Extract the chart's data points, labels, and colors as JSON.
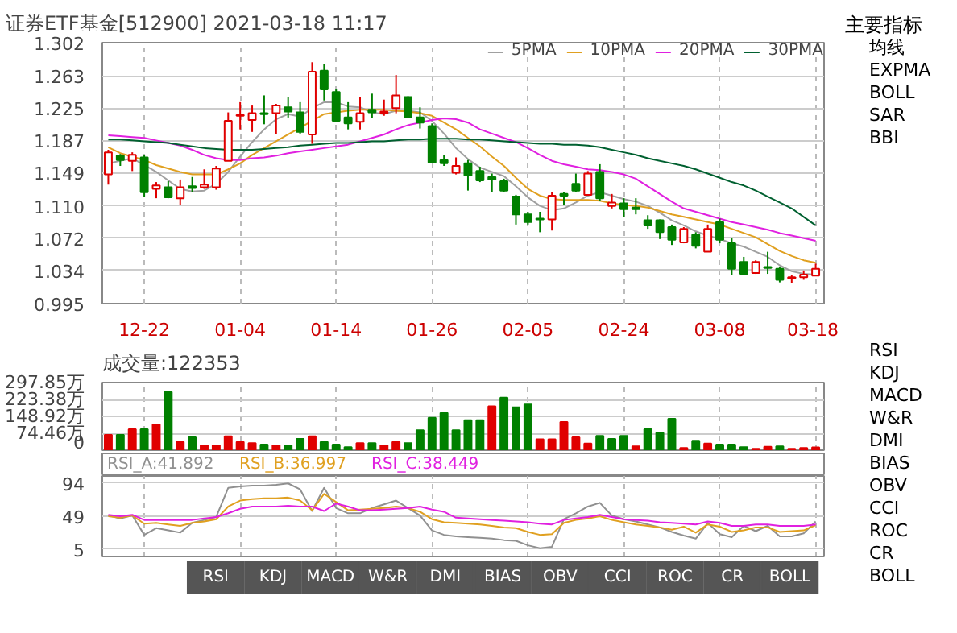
{
  "chart_data": [
    {
      "type": "candlestick",
      "title": "证券ETF基金[512900] 2021-03-18 11:17",
      "categories": [
        null,
        null,
        null,
        "12-22",
        null,
        null,
        null,
        null,
        null,
        null,
        null,
        "01-04",
        null,
        null,
        null,
        null,
        null,
        null,
        null,
        "01-14",
        null,
        null,
        null,
        null,
        null,
        null,
        null,
        "01-26",
        null,
        null,
        null,
        null,
        null,
        null,
        null,
        "02-05",
        null,
        null,
        null,
        null,
        null,
        null,
        null,
        "02-24",
        null,
        null,
        null,
        null,
        null,
        null,
        null,
        "03-08",
        null,
        null,
        null,
        null,
        null,
        null,
        null,
        "03-18"
      ],
      "ohlc": [
        [
          1.147,
          1.176,
          1.135,
          1.173
        ],
        [
          1.169,
          1.171,
          1.157,
          1.164
        ],
        [
          1.163,
          1.173,
          1.151,
          1.17
        ],
        [
          1.167,
          1.17,
          1.121,
          1.126
        ],
        [
          1.13,
          1.138,
          1.119,
          1.134
        ],
        [
          1.132,
          1.139,
          1.119,
          1.12
        ],
        [
          1.119,
          1.141,
          1.111,
          1.132
        ],
        [
          1.133,
          1.144,
          1.126,
          1.131
        ],
        [
          1.132,
          1.153,
          1.13,
          1.135
        ],
        [
          1.132,
          1.157,
          1.129,
          1.154
        ],
        [
          1.163,
          1.22,
          1.163,
          1.21
        ],
        [
          1.216,
          1.232,
          1.2,
          1.217
        ],
        [
          1.211,
          1.228,
          1.197,
          1.219
        ],
        [
          1.219,
          1.24,
          1.206,
          1.218
        ],
        [
          1.219,
          1.23,
          1.194,
          1.228
        ],
        [
          1.226,
          1.238,
          1.214,
          1.221
        ],
        [
          1.22,
          1.232,
          1.195,
          1.197
        ],
        [
          1.194,
          1.279,
          1.183,
          1.268
        ],
        [
          1.269,
          1.277,
          1.234,
          1.247
        ],
        [
          1.244,
          1.247,
          1.209,
          1.21
        ],
        [
          1.214,
          1.232,
          1.2,
          1.207
        ],
        [
          1.209,
          1.238,
          1.2,
          1.219
        ],
        [
          1.223,
          1.242,
          1.213,
          1.22
        ],
        [
          1.219,
          1.235,
          1.216,
          1.221
        ],
        [
          1.225,
          1.264,
          1.219,
          1.24
        ],
        [
          1.238,
          1.239,
          1.213,
          1.214
        ],
        [
          1.214,
          1.226,
          1.201,
          1.208
        ],
        [
          1.204,
          1.207,
          1.161,
          1.161
        ],
        [
          1.164,
          1.17,
          1.157,
          1.16
        ],
        [
          1.149,
          1.167,
          1.147,
          1.157
        ],
        [
          1.16,
          1.164,
          1.128,
          1.146
        ],
        [
          1.151,
          1.156,
          1.138,
          1.14
        ],
        [
          1.144,
          1.148,
          1.126,
          1.141
        ],
        [
          1.139,
          1.142,
          1.126,
          1.128
        ],
        [
          1.121,
          1.123,
          1.088,
          1.1
        ],
        [
          1.1,
          1.103,
          1.088,
          1.091
        ],
        [
          1.095,
          1.103,
          1.079,
          1.094
        ],
        [
          1.094,
          1.126,
          1.081,
          1.122
        ],
        [
          1.124,
          1.126,
          1.111,
          1.122
        ],
        [
          1.136,
          1.148,
          1.126,
          1.128
        ],
        [
          1.123,
          1.151,
          1.122,
          1.148
        ],
        [
          1.15,
          1.159,
          1.116,
          1.119
        ],
        [
          1.11,
          1.124,
          1.107,
          1.114
        ],
        [
          1.113,
          1.119,
          1.097,
          1.106
        ],
        [
          1.108,
          1.119,
          1.1,
          1.106
        ],
        [
          1.093,
          1.099,
          1.083,
          1.087
        ],
        [
          1.093,
          1.094,
          1.071,
          1.079
        ],
        [
          1.085,
          1.088,
          1.064,
          1.07
        ],
        [
          1.067,
          1.085,
          1.066,
          1.083
        ],
        [
          1.076,
          1.079,
          1.06,
          1.063
        ],
        [
          1.056,
          1.088,
          1.056,
          1.083
        ],
        [
          1.091,
          1.095,
          1.066,
          1.07
        ],
        [
          1.066,
          1.072,
          1.029,
          1.036
        ],
        [
          1.044,
          1.05,
          1.029,
          1.03
        ],
        [
          1.031,
          1.046,
          1.03,
          1.044
        ],
        [
          1.038,
          1.056,
          1.03,
          1.037
        ],
        [
          1.036,
          1.038,
          1.02,
          1.023
        ],
        [
          1.025,
          1.029,
          1.019,
          1.026
        ],
        [
          1.026,
          1.034,
          1.023,
          1.029
        ],
        [
          1.028,
          1.042,
          1.028,
          1.036
        ]
      ],
      "colors": [
        "#e00000",
        "#008000",
        "#e00000",
        "#008000",
        "#e00000",
        "#008000",
        "#e00000",
        "#008000",
        "#e00000",
        "#e00000",
        "#e00000",
        "#e00000",
        "#e00000",
        "#008000",
        "#e00000",
        "#008000",
        "#008000",
        "#e00000",
        "#008000",
        "#008000",
        "#008000",
        "#e00000",
        "#008000",
        "#e00000",
        "#e00000",
        "#008000",
        "#008000",
        "#008000",
        "#008000",
        "#e00000",
        "#008000",
        "#008000",
        "#008000",
        "#008000",
        "#008000",
        "#008000",
        "#008000",
        "#e00000",
        "#008000",
        "#008000",
        "#e00000",
        "#008000",
        "#e00000",
        "#008000",
        "#008000",
        "#008000",
        "#008000",
        "#008000",
        "#e00000",
        "#008000",
        "#e00000",
        "#008000",
        "#008000",
        "#008000",
        "#e00000",
        "#008000",
        "#008000",
        "#e00000",
        "#e00000",
        "#e00000"
      ],
      "series": [
        {
          "type": "line",
          "name": "5PMA",
          "color": "#a0a0a0",
          "values": [
            1.16,
            1.163,
            1.166,
            1.158,
            1.15,
            1.14,
            1.13,
            1.127,
            1.128,
            1.136,
            1.15,
            1.168,
            1.185,
            1.2,
            1.212,
            1.218,
            1.215,
            1.225,
            1.232,
            1.232,
            1.227,
            1.226,
            1.22,
            1.218,
            1.222,
            1.222,
            1.22,
            1.21,
            1.195,
            1.178,
            1.165,
            1.155,
            1.15,
            1.145,
            1.133,
            1.12,
            1.11,
            1.105,
            1.107,
            1.114,
            1.122,
            1.126,
            1.122,
            1.118,
            1.115,
            1.11,
            1.102,
            1.093,
            1.087,
            1.08,
            1.075,
            1.071,
            1.066,
            1.062,
            1.056,
            1.05,
            1.04,
            1.033,
            1.03,
            1.029
          ]
        },
        {
          "type": "line",
          "name": "10PMA",
          "color": "#e0a020",
          "values": [
            1.179,
            1.172,
            1.168,
            1.164,
            1.158,
            1.154,
            1.15,
            1.147,
            1.147,
            1.147,
            1.153,
            1.16,
            1.17,
            1.178,
            1.186,
            1.194,
            1.202,
            1.21,
            1.218,
            1.22,
            1.222,
            1.223,
            1.223,
            1.223,
            1.222,
            1.221,
            1.219,
            1.216,
            1.208,
            1.2,
            1.19,
            1.18,
            1.168,
            1.157,
            1.143,
            1.13,
            1.122,
            1.118,
            1.117,
            1.117,
            1.117,
            1.116,
            1.113,
            1.111,
            1.11,
            1.108,
            1.104,
            1.1,
            1.097,
            1.094,
            1.091,
            1.088,
            1.083,
            1.078,
            1.073,
            1.065,
            1.057,
            1.051,
            1.046,
            1.043
          ]
        },
        {
          "type": "line",
          "name": "20PMA",
          "color": "#e020e0",
          "values": [
            1.193,
            1.192,
            1.191,
            1.19,
            1.187,
            1.184,
            1.181,
            1.176,
            1.17,
            1.166,
            1.164,
            1.164,
            1.166,
            1.167,
            1.169,
            1.172,
            1.174,
            1.176,
            1.178,
            1.18,
            1.182,
            1.186,
            1.19,
            1.194,
            1.2,
            1.205,
            1.208,
            1.211,
            1.213,
            1.212,
            1.208,
            1.2,
            1.195,
            1.19,
            1.185,
            1.178,
            1.17,
            1.163,
            1.159,
            1.156,
            1.153,
            1.152,
            1.15,
            1.147,
            1.142,
            1.133,
            1.124,
            1.115,
            1.107,
            1.103,
            1.099,
            1.095,
            1.091,
            1.088,
            1.085,
            1.082,
            1.078,
            1.075,
            1.072,
            1.069
          ]
        },
        {
          "type": "line",
          "name": "30PMA",
          "color": "#006030",
          "values": [
            1.188,
            1.188,
            1.187,
            1.186,
            1.185,
            1.184,
            1.182,
            1.18,
            1.178,
            1.177,
            1.176,
            1.176,
            1.176,
            1.177,
            1.178,
            1.179,
            1.181,
            1.182,
            1.183,
            1.184,
            1.184,
            1.185,
            1.186,
            1.186,
            1.187,
            1.188,
            1.188,
            1.189,
            1.189,
            1.189,
            1.188,
            1.188,
            1.187,
            1.186,
            1.185,
            1.184,
            1.183,
            1.183,
            1.182,
            1.182,
            1.181,
            1.179,
            1.176,
            1.173,
            1.17,
            1.166,
            1.163,
            1.16,
            1.157,
            1.153,
            1.148,
            1.143,
            1.138,
            1.134,
            1.128,
            1.121,
            1.114,
            1.107,
            1.097,
            1.087
          ]
        }
      ],
      "ylim": [
        0.995,
        1.302
      ],
      "yticks": [
        0.995,
        1.034,
        1.072,
        {
          "value": 1.11,
          "label": "1.110"
        },
        1.149,
        1.187,
        1.225,
        1.263,
        1.302
      ],
      "grid": true,
      "legend": "top right"
    },
    {
      "type": "bar",
      "title": "成交量:122353",
      "categories": [
        null,
        null,
        null,
        null,
        null,
        null,
        null,
        null,
        null,
        null,
        null,
        null,
        null,
        null,
        null,
        null,
        null,
        null,
        null,
        null,
        null,
        null,
        null,
        null,
        null,
        null,
        null,
        null,
        null,
        null,
        null,
        null,
        null,
        null,
        null,
        null,
        null,
        null,
        null,
        null,
        null,
        null,
        null,
        null,
        null,
        null,
        null,
        null,
        null,
        null,
        null,
        null,
        null,
        null,
        null,
        null,
        null,
        null,
        null,
        null
      ],
      "values": [
        67,
        67,
        92,
        92,
        113,
        256,
        36,
        57,
        21,
        21,
        61,
        36,
        31,
        25,
        21,
        21,
        50,
        61,
        36,
        25,
        13,
        31,
        31,
        21,
        36,
        31,
        88,
        143,
        164,
        88,
        132,
        132,
        193,
        231,
        189,
        201,
        48,
        48,
        124,
        57,
        29,
        63,
        50,
        63,
        17,
        92,
        76,
        138,
        10,
        42,
        29,
        25,
        25,
        13,
        6,
        15,
        17,
        6,
        10,
        12
      ],
      "colors": [
        "#e00000",
        "#008000",
        "#e00000",
        "#008000",
        "#e00000",
        "#008000",
        "#e00000",
        "#008000",
        "#e00000",
        "#e00000",
        "#e00000",
        "#e00000",
        "#e00000",
        "#008000",
        "#e00000",
        "#008000",
        "#008000",
        "#e00000",
        "#008000",
        "#008000",
        "#008000",
        "#e00000",
        "#008000",
        "#e00000",
        "#e00000",
        "#008000",
        "#008000",
        "#008000",
        "#008000",
        "#008000",
        "#008000",
        "#008000",
        "#e00000",
        "#008000",
        "#008000",
        "#008000",
        "#e00000",
        "#e00000",
        "#e00000",
        "#e00000",
        "#e00000",
        "#008000",
        "#008000",
        "#008000",
        "#e00000",
        "#008000",
        "#008000",
        "#008000",
        "#e00000",
        "#008000",
        "#e00000",
        "#008000",
        "#008000",
        "#008000",
        "#e00000",
        "#e00000",
        "#008000",
        "#e00000",
        "#e00000",
        "#e00000"
      ],
      "ylim": [
        0,
        297.85
      ],
      "yticks": [
        {
          "value": 0,
          "label": "0"
        },
        {
          "value": 74.46,
          "label": "74.46万"
        },
        {
          "value": 148.92,
          "label": "148.92万"
        },
        {
          "value": 223.38,
          "label": "223.38万"
        },
        {
          "value": 297.85,
          "label": "297.85万"
        }
      ],
      "grid": true,
      "tick_labels": "y"
    },
    {
      "type": "line",
      "categories": [
        null,
        null,
        null,
        null,
        null,
        null,
        null,
        null,
        null,
        null,
        null,
        null,
        null,
        null,
        null,
        null,
        null,
        null,
        null,
        null,
        null,
        null,
        null,
        null,
        null,
        null,
        null,
        null,
        null,
        null,
        null,
        null,
        null,
        null,
        null,
        null,
        null,
        null,
        null,
        null,
        null,
        null,
        null,
        null,
        null,
        null,
        null,
        null,
        null,
        null,
        null,
        null,
        null,
        null,
        null,
        null,
        null,
        null,
        null,
        null
      ],
      "series": [
        {
          "name": "RSI_A:41.892",
          "color": "#909090",
          "values": [
            50,
            46,
            50,
            24,
            33,
            30,
            27,
            40,
            44,
            48,
            87,
            89,
            90,
            90,
            91,
            93,
            85,
            56,
            87,
            60,
            53,
            53,
            60,
            65,
            70,
            60,
            50,
            30,
            24,
            22,
            21,
            20,
            19,
            17,
            16,
            10,
            6,
            8,
            45,
            53,
            62,
            67,
            50,
            45,
            42,
            38,
            34,
            28,
            23,
            19,
            40,
            25,
            21,
            36,
            29,
            36,
            22,
            22,
            26,
            42
          ]
        },
        {
          "name": "RSI_B:36.997",
          "color": "#e0a020",
          "values": [
            49,
            47,
            50,
            39,
            40,
            38,
            36,
            40,
            42,
            45,
            62,
            70,
            72,
            73,
            73,
            74,
            70,
            57,
            79,
            68,
            57,
            58,
            59,
            60,
            62,
            60,
            55,
            45,
            41,
            40,
            39,
            38,
            36,
            34,
            33,
            28,
            24,
            25,
            40,
            44,
            46,
            49,
            44,
            41,
            38,
            36,
            34,
            31,
            35,
            27,
            38,
            35,
            28,
            30,
            34,
            34,
            28,
            29,
            30,
            37
          ]
        },
        {
          "name": "RSI_C:38.449",
          "color": "#e020e0",
          "values": [
            51,
            49,
            51,
            44,
            44,
            44,
            44,
            44,
            46,
            48,
            53,
            59,
            62,
            62,
            62,
            63,
            62,
            62,
            56,
            66,
            62,
            57,
            57,
            58,
            59,
            60,
            62,
            58,
            55,
            47,
            46,
            45,
            44,
            43,
            42,
            41,
            39,
            38,
            44,
            46,
            48,
            51,
            48,
            45,
            44,
            43,
            41,
            40,
            39,
            38,
            42,
            40,
            36,
            36,
            38,
            38,
            36,
            36,
            36,
            38
          ]
        }
      ],
      "ylim": [
        -5,
        103
      ],
      "yticks": [
        5,
        49,
        94
      ],
      "grid": true,
      "legend": "top",
      "tick_labels": "y"
    },
    {
      "type": "other",
      "categories": [
        "RSI",
        "KDJ",
        "MACD",
        "W&R",
        "DMI",
        "BIAS",
        "OBV",
        "CCI",
        "ROC",
        "CR",
        "BOLL"
      ]
    },
    {
      "type": "other",
      "title": "主要指标",
      "categories": [
        "均线",
        "EXPMA",
        "BOLL",
        "SAR",
        "BBI"
      ]
    },
    {
      "type": "other",
      "categories": [
        "RSI",
        "KDJ",
        "MACD",
        "W&R",
        "DMI",
        "BIAS",
        "OBV",
        "CCI",
        "ROC",
        "CR",
        "BOLL"
      ]
    }
  ]
}
